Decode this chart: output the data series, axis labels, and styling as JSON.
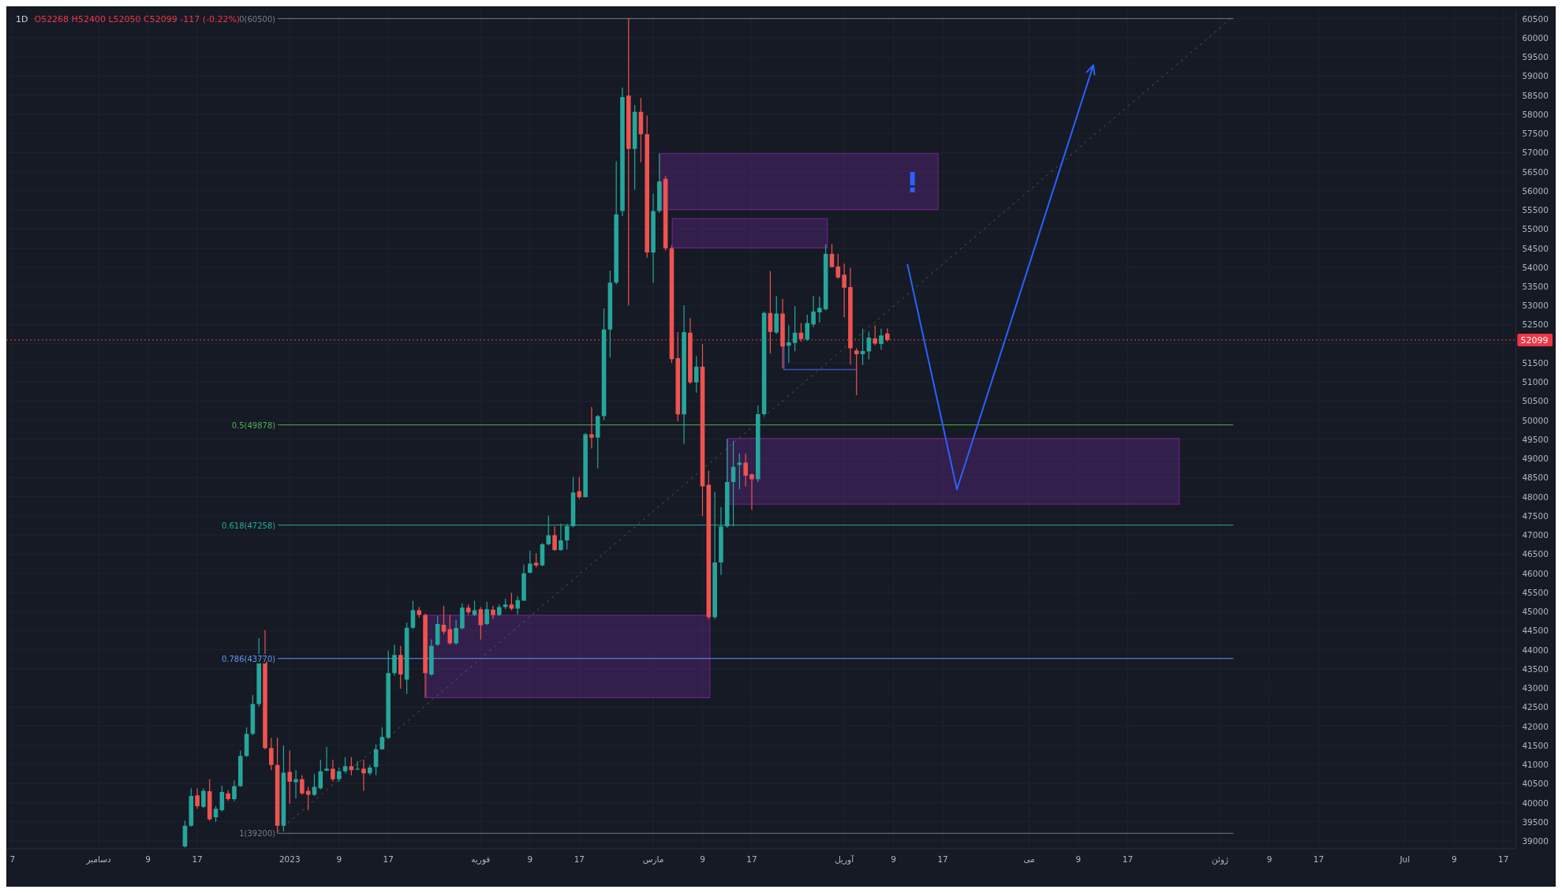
{
  "chart_data": {
    "type": "candlestick",
    "title": "1D",
    "subtitle": "O52268 H52400 L52050 C52099 -117 (-0.22%)",
    "x": [
      "2022-12-15",
      "2022-12-16",
      "2022-12-17",
      "2022-12-18",
      "2022-12-19",
      "2022-12-20",
      "2022-12-21",
      "2022-12-22",
      "2022-12-23",
      "2022-12-24",
      "2022-12-25",
      "2022-12-26",
      "2022-12-27",
      "2022-12-28",
      "2022-12-29",
      "2022-12-30",
      "2022-12-31",
      "2023-01-01",
      "2023-01-02",
      "2023-01-03",
      "2023-01-04",
      "2023-01-05",
      "2023-01-06",
      "2023-01-07",
      "2023-01-08",
      "2023-01-09",
      "2023-01-10",
      "2023-01-11",
      "2023-01-12",
      "2023-01-13",
      "2023-01-14",
      "2023-01-15",
      "2023-01-16",
      "2023-01-17",
      "2023-01-18",
      "2023-01-19",
      "2023-01-20",
      "2023-01-21",
      "2023-01-22",
      "2023-01-23",
      "2023-01-24",
      "2023-01-25",
      "2023-01-26",
      "2023-01-27",
      "2023-01-28",
      "2023-01-29",
      "2023-01-30",
      "2023-01-31",
      "2023-02-01",
      "2023-02-02",
      "2023-02-03",
      "2023-02-04",
      "2023-02-05",
      "2023-02-06",
      "2023-02-07",
      "2023-02-08",
      "2023-02-09",
      "2023-02-10",
      "2023-02-11",
      "2023-02-12",
      "2023-02-13",
      "2023-02-14",
      "2023-02-15",
      "2023-02-16",
      "2023-02-17",
      "2023-02-18",
      "2023-02-19",
      "2023-02-20",
      "2023-02-21",
      "2023-02-22",
      "2023-02-23",
      "2023-02-24",
      "2023-02-25",
      "2023-02-26",
      "2023-02-27",
      "2023-02-28",
      "2023-03-01",
      "2023-03-02",
      "2023-03-03",
      "2023-03-04",
      "2023-03-05",
      "2023-03-06",
      "2023-03-07",
      "2023-03-08",
      "2023-03-09",
      "2023-03-10",
      "2023-03-11",
      "2023-03-12",
      "2023-03-13",
      "2023-03-14",
      "2023-03-15",
      "2023-03-16",
      "2023-03-17",
      "2023-03-18",
      "2023-03-19",
      "2023-03-20",
      "2023-03-21",
      "2023-03-22",
      "2023-03-23",
      "2023-03-24",
      "2023-03-25",
      "2023-03-26",
      "2023-03-27",
      "2023-03-28",
      "2023-03-29",
      "2023-03-30",
      "2023-03-31",
      "2023-04-01",
      "2023-04-02",
      "2023-04-03",
      "2023-04-04",
      "2023-04-05",
      "2023-04-06",
      "2023-04-07",
      "2023-04-08"
    ],
    "ohlc": [
      [
        38856,
        39533,
        38830,
        39398
      ],
      [
        39398,
        40378,
        39370,
        40175
      ],
      [
        40189,
        40378,
        39838,
        39905
      ],
      [
        39892,
        40378,
        39860,
        40310
      ],
      [
        40297,
        40615,
        39533,
        39567
      ],
      [
        39621,
        39905,
        39499,
        39838
      ],
      [
        39804,
        40446,
        39770,
        40277
      ],
      [
        40243,
        40324,
        40054,
        40094
      ],
      [
        40094,
        40581,
        40040,
        40432
      ],
      [
        40432,
        41359,
        40412,
        41224
      ],
      [
        41224,
        41968,
        41190,
        41799
      ],
      [
        41799,
        42814,
        41765,
        42577
      ],
      [
        42577,
        44302,
        42510,
        43794
      ],
      [
        43794,
        44505,
        41393,
        41427
      ],
      [
        41427,
        41697,
        40852,
        40987
      ],
      [
        40987,
        41697,
        39200,
        39398
      ],
      [
        39398,
        41494,
        39250,
        40784
      ],
      [
        40804,
        41359,
        39973,
        40547
      ],
      [
        40534,
        40852,
        40108,
        40615
      ],
      [
        40615,
        40716,
        40209,
        40243
      ],
      [
        40310,
        40412,
        39804,
        40209
      ],
      [
        40209,
        40750,
        40175,
        40412
      ],
      [
        40378,
        41122,
        40344,
        40818
      ],
      [
        40838,
        41460,
        40830,
        40886
      ],
      [
        40886,
        41122,
        40547,
        40615
      ],
      [
        40615,
        40919,
        40547,
        40818
      ],
      [
        40818,
        41190,
        40784,
        40953
      ],
      [
        40953,
        41190,
        40716,
        40852
      ],
      [
        40872,
        41088,
        40852,
        40886
      ],
      [
        40886,
        41122,
        40311,
        40770
      ],
      [
        40770,
        40987,
        40716,
        40919
      ],
      [
        40933,
        41528,
        40716,
        41393
      ],
      [
        41393,
        41968,
        41393,
        41717
      ],
      [
        41697,
        43963,
        41663,
        43388
      ],
      [
        43388,
        44133,
        43320,
        43862
      ],
      [
        43862,
        44099,
        42983,
        43354
      ],
      [
        43219,
        44708,
        42848,
        44573
      ],
      [
        44573,
        45283,
        44539,
        45033
      ],
      [
        45033,
        45114,
        44843,
        44911
      ],
      [
        44911,
        44945,
        42746,
        43388
      ],
      [
        43354,
        44268,
        43320,
        44098
      ],
      [
        44131,
        44876,
        44098,
        44673
      ],
      [
        44653,
        45148,
        44402,
        44470
      ],
      [
        44538,
        44910,
        44131,
        44166
      ],
      [
        44166,
        44775,
        44131,
        44571
      ],
      [
        44558,
        45215,
        44538,
        45100
      ],
      [
        45100,
        45181,
        44910,
        44978
      ],
      [
        44910,
        45283,
        44876,
        45032
      ],
      [
        45060,
        45114,
        44267,
        44640
      ],
      [
        44673,
        45250,
        44640,
        45060
      ],
      [
        45046,
        45148,
        44808,
        44910
      ],
      [
        44910,
        45181,
        44876,
        45114
      ],
      [
        45114,
        45331,
        45060,
        45181
      ],
      [
        45181,
        45486,
        45032,
        45073
      ],
      [
        45073,
        45398,
        44917,
        45296
      ],
      [
        45283,
        46229,
        45283,
        45999
      ],
      [
        46012,
        46587,
        45999,
        46249
      ],
      [
        46269,
        46520,
        46147,
        46202
      ],
      [
        46202,
        46790,
        46182,
        46757
      ],
      [
        46757,
        47501,
        46723,
        46993
      ],
      [
        46993,
        47231,
        46587,
        46608
      ],
      [
        46608,
        47298,
        46587,
        46858
      ],
      [
        46858,
        47298,
        46621,
        47231
      ],
      [
        47231,
        48516,
        47197,
        48110
      ],
      [
        48144,
        48516,
        47941,
        47988
      ],
      [
        47988,
        49666,
        47975,
        49632
      ],
      [
        49632,
        50342,
        49260,
        49544
      ],
      [
        49544,
        50139,
        48739,
        50105
      ],
      [
        50105,
        52917,
        50000,
        52373
      ],
      [
        52373,
        53913,
        51637,
        53596
      ],
      [
        53596,
        56769,
        53551,
        55381
      ],
      [
        55472,
        58697,
        55336,
        58452
      ],
      [
        58488,
        60500,
        53004,
        57092
      ],
      [
        57092,
        58244,
        56025,
        58062
      ],
      [
        58062,
        58425,
        56744,
        57473
      ],
      [
        57473,
        57971,
        54252,
        54388
      ],
      [
        54388,
        55925,
        53596,
        55472
      ],
      [
        55472,
        56970,
        55426,
        56245
      ],
      [
        56308,
        56380,
        54433,
        54497
      ],
      [
        54497,
        54570,
        51500,
        51596
      ],
      [
        51623,
        52305,
        49970,
        50151
      ],
      [
        50151,
        53004,
        49380,
        52305
      ],
      [
        52287,
        52668,
        50946,
        50991
      ],
      [
        50991,
        51672,
        50719,
        51399
      ],
      [
        51399,
        51988,
        47500,
        48270
      ],
      [
        48311,
        48673,
        44800,
        44850
      ],
      [
        44850,
        48127,
        44800,
        46282
      ],
      [
        46282,
        47731,
        45955,
        47224
      ],
      [
        47224,
        49507,
        47188,
        48384
      ],
      [
        48384,
        49453,
        47224,
        48782
      ],
      [
        48833,
        49130,
        48200,
        48890
      ],
      [
        48890,
        49130,
        48264,
        48551
      ],
      [
        48586,
        48600,
        47659,
        48456
      ],
      [
        48456,
        50378,
        48383,
        50160
      ],
      [
        50160,
        52839,
        50124,
        52803
      ],
      [
        52803,
        53903,
        51746,
        52310
      ],
      [
        52295,
        53243,
        52259,
        52788
      ],
      [
        52788,
        53171,
        51354,
        51927
      ],
      [
        51949,
        52484,
        51500,
        52035
      ],
      [
        52020,
        52983,
        51805,
        52288
      ],
      [
        52288,
        52542,
        52049,
        52122
      ],
      [
        52107,
        52759,
        52071,
        52542
      ],
      [
        52505,
        53252,
        52433,
        52846
      ],
      [
        52817,
        53230,
        52556,
        52940
      ],
      [
        52904,
        54600,
        52868,
        54352
      ],
      [
        54352,
        54606,
        53990,
        54005
      ],
      [
        54020,
        54352,
        53695,
        53731
      ],
      [
        53803,
        54092,
        52694,
        53463
      ],
      [
        53478,
        53985,
        51451,
        51883
      ],
      [
        51826,
        51883,
        50656,
        51724
      ],
      [
        51724,
        52390,
        51449,
        51811
      ],
      [
        51797,
        52317,
        51594,
        52158
      ],
      [
        52136,
        52477,
        51956,
        52006
      ],
      [
        51992,
        52389,
        51847,
        52216
      ],
      [
        52268,
        52400,
        52050,
        52099
      ]
    ],
    "xlim": [
      "2022-11-16",
      "2023-07-19"
    ],
    "xticks": [
      {
        "value": "2022-11-17",
        "label": "7"
      },
      {
        "value": "2022-12-01",
        "label": "دسامبر"
      },
      {
        "value": "2022-12-09",
        "label": "9"
      },
      {
        "value": "2022-12-17",
        "label": "17"
      },
      {
        "value": "2023-01-01",
        "label": "2023"
      },
      {
        "value": "2023-01-09",
        "label": "9"
      },
      {
        "value": "2023-01-17",
        "label": "17"
      },
      {
        "value": "2023-02-01",
        "label": "فوریه"
      },
      {
        "value": "2023-02-09",
        "label": "9"
      },
      {
        "value": "2023-02-17",
        "label": "17"
      },
      {
        "value": "2023-03-01",
        "label": "مارس"
      },
      {
        "value": "2023-03-09",
        "label": "9"
      },
      {
        "value": "2023-03-17",
        "label": "17"
      },
      {
        "value": "2023-04-01",
        "label": "آوریل"
      },
      {
        "value": "2023-04-09",
        "label": "9"
      },
      {
        "value": "2023-04-17",
        "label": "17"
      },
      {
        "value": "2023-05-01",
        "label": "می"
      },
      {
        "value": "2023-05-09",
        "label": "9"
      },
      {
        "value": "2023-05-17",
        "label": "17"
      },
      {
        "value": "2023-06-01",
        "label": "ژوئن"
      },
      {
        "value": "2023-06-09",
        "label": "9"
      },
      {
        "value": "2023-06-17",
        "label": "17"
      },
      {
        "value": "2023-07-01",
        "label": "Jul"
      },
      {
        "value": "2023-07-09",
        "label": "9"
      },
      {
        "value": "2023-07-17",
        "label": "17"
      }
    ],
    "ylim": [
      38800,
      60700
    ],
    "yticks": [
      39000,
      39500,
      40000,
      40500,
      41000,
      41500,
      42000,
      42500,
      43000,
      43500,
      44000,
      44500,
      45000,
      45500,
      46000,
      46500,
      47000,
      47500,
      48000,
      48500,
      49000,
      49500,
      50000,
      50500,
      51000,
      51500,
      {
        "value": 52000,
        "label": null
      },
      52500,
      53000,
      53500,
      54000,
      54500,
      55000,
      55500,
      56000,
      56500,
      57000,
      57500,
      58000,
      58500,
      59000,
      59500,
      60000,
      60500
    ],
    "grid": true,
    "ref_lines": [
      {
        "axis": "y",
        "value": 60500,
        "label": "0(60500)",
        "color": "#787b86",
        "line_style": "solid"
      },
      {
        "axis": "y",
        "value": 49878,
        "label": "0.5(49878)",
        "color": "#4caf50",
        "line_style": "solid"
      },
      {
        "axis": "y",
        "value": 47258,
        "label": "0.618(47258)",
        "color": "#22ab94",
        "line_style": "solid"
      },
      {
        "axis": "y",
        "value": 43770,
        "label": "0.786(43770)",
        "color": "#5b9cf6",
        "line_style": "solid"
      },
      {
        "axis": "y",
        "value": 39200,
        "label": "1(39200)",
        "color": "#787b86",
        "line_style": "solid"
      },
      {
        "axis": "y",
        "value": 52099,
        "label": "52099",
        "color": "#f23645",
        "line_style": "dotted"
      }
    ]
  }
}
